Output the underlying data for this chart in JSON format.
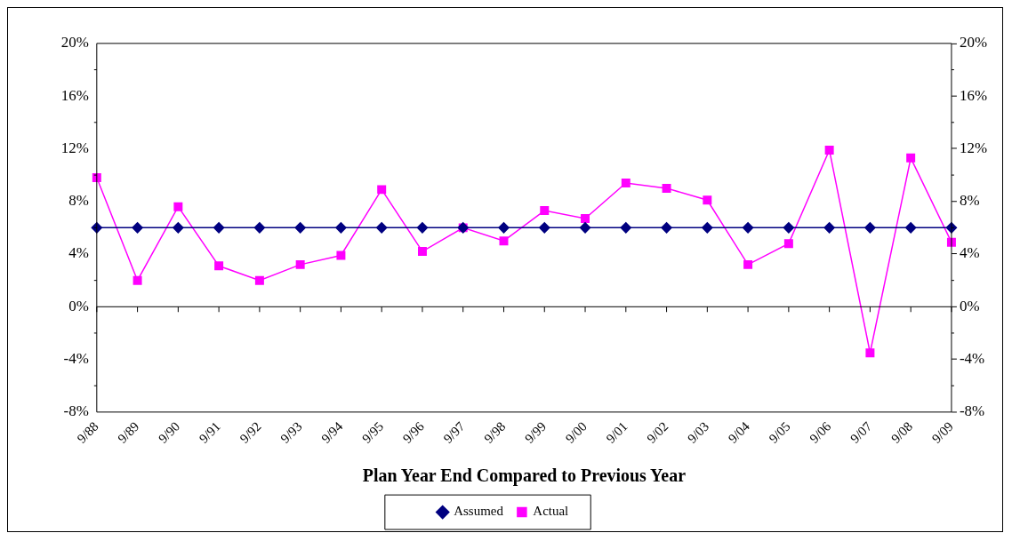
{
  "chart_data": {
    "type": "line",
    "xlabel": "Plan Year End Compared to Previous Year",
    "categories": [
      "9/88",
      "9/89",
      "9/90",
      "9/91",
      "9/92",
      "9/93",
      "9/94",
      "9/95",
      "9/96",
      "9/97",
      "9/98",
      "9/99",
      "9/00",
      "9/01",
      "9/02",
      "9/03",
      "9/04",
      "9/05",
      "9/06",
      "9/07",
      "9/08",
      "9/09"
    ],
    "series": [
      {
        "name": "Actual",
        "color": "#ff00ff",
        "marker": "square",
        "values": [
          9.8,
          2.0,
          7.6,
          3.1,
          2.0,
          3.2,
          3.9,
          8.9,
          4.2,
          6.0,
          5.0,
          7.3,
          6.7,
          9.4,
          9.0,
          8.1,
          3.2,
          4.8,
          11.9,
          -3.5,
          11.3,
          4.9
        ]
      },
      {
        "name": "Assumed",
        "color": "#000080",
        "marker": "diamond",
        "values": [
          6,
          6,
          6,
          6,
          6,
          6,
          6,
          6,
          6,
          6,
          6,
          6,
          6,
          6,
          6,
          6,
          6,
          6,
          6,
          6,
          6,
          6
        ]
      }
    ],
    "ylim": [
      -8,
      20
    ],
    "yticks": [
      {
        "value": -8,
        "label": "-8%"
      },
      {
        "value": -4,
        "label": "-4%"
      },
      {
        "value": 0,
        "label": "0%"
      },
      {
        "value": 4,
        "label": "4%"
      },
      {
        "value": 8,
        "label": "8%"
      },
      {
        "value": 12,
        "label": "12%"
      },
      {
        "value": 16,
        "label": "16%"
      },
      {
        "value": 20,
        "label": "20%"
      }
    ],
    "y2lim": [
      -8,
      20
    ],
    "y2ticks": [
      {
        "value": -8,
        "label": "-8%"
      },
      {
        "value": -4,
        "label": "-4%"
      },
      {
        "value": 0,
        "label": "0%"
      },
      {
        "value": 4,
        "label": "4%"
      },
      {
        "value": 8,
        "label": "8%"
      },
      {
        "value": 12,
        "label": "12%"
      },
      {
        "value": 16,
        "label": "16%"
      },
      {
        "value": 20,
        "label": "20%"
      }
    ],
    "legend": "bottom",
    "line_style": "solid"
  }
}
